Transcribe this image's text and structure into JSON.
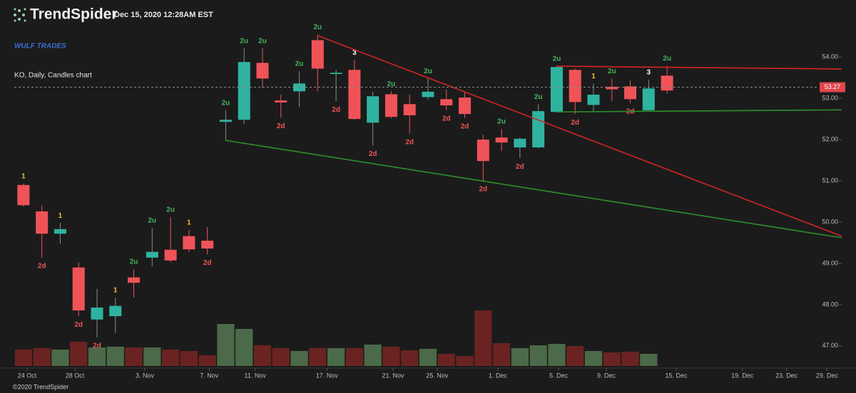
{
  "brand": "TrendSpider",
  "timestamp": "Dec 15, 2020 12:28AM EST",
  "watermark": "WULF TRADES",
  "chart_info": "KO, Daily, Candles chart",
  "footer": "©2020 TrendSpider",
  "chart_data": {
    "type": "candlestick",
    "open": [
      50.9,
      50.26,
      49.72,
      48.9,
      47.64,
      47.72,
      48.66,
      49.14,
      49.33,
      49.66,
      49.55,
      52.43,
      52.48,
      53.86,
      52.95,
      53.17,
      54.41,
      53.59,
      53.69,
      52.41,
      53.1,
      52.86,
      53.03,
      52.98,
      53.02,
      52.0,
      52.05,
      51.81,
      51.81,
      52.67,
      53.69,
      52.84,
      53.28,
      53.29,
      52.71,
      53.55
    ],
    "high": [
      50.93,
      50.41,
      49.98,
      49.03,
      48.38,
      48.17,
      48.86,
      49.86,
      50.12,
      49.81,
      49.88,
      52.71,
      54.21,
      54.21,
      53.09,
      53.66,
      54.55,
      53.69,
      53.93,
      53.16,
      53.17,
      53.09,
      53.48,
      53.21,
      53.16,
      52.12,
      52.26,
      52.05,
      52.86,
      53.78,
      53.72,
      53.36,
      53.48,
      53.43,
      53.45,
      53.79
    ],
    "low": [
      50.38,
      49.14,
      49.48,
      47.72,
      47.21,
      47.31,
      48.17,
      48.93,
      49.03,
      49.28,
      49.22,
      51.97,
      52.38,
      53.24,
      52.53,
      52.79,
      53.17,
      52.93,
      52.48,
      51.86,
      52.52,
      52.14,
      52.97,
      52.71,
      52.52,
      51.0,
      51.72,
      51.55,
      51.79,
      52.66,
      52.62,
      52.69,
      52.93,
      52.88,
      52.71,
      53.12
    ],
    "close": [
      50.41,
      49.72,
      49.83,
      47.86,
      47.93,
      47.97,
      48.53,
      49.28,
      49.07,
      49.34,
      49.36,
      52.48,
      53.88,
      53.48,
      52.9,
      53.36,
      53.72,
      53.62,
      52.5,
      53.05,
      52.55,
      52.59,
      53.16,
      52.83,
      52.62,
      51.48,
      51.93,
      52.02,
      52.69,
      53.76,
      52.91,
      53.09,
      53.22,
      52.98,
      53.24,
      53.19
    ],
    "labels": [
      "1",
      "2d",
      "1",
      "2d",
      "2d",
      "1",
      "2u",
      "2u",
      "2u",
      "1",
      "2d",
      "2u",
      "2u",
      "2u",
      "2d",
      "2u",
      "2u",
      "2d",
      "3",
      "2d",
      "2u",
      "2d",
      "2u",
      "2d",
      "2d",
      "2d",
      "2u",
      "2d",
      "2u",
      "2u",
      "2d",
      "1",
      "2u",
      "2d",
      "3",
      "2u"
    ],
    "volume": [
      23,
      25,
      23,
      34,
      26,
      27,
      26,
      26,
      23,
      21,
      15,
      59,
      52,
      29,
      25,
      21,
      25,
      25,
      25,
      30,
      27,
      22,
      24,
      17,
      14,
      78,
      32,
      25,
      29,
      31,
      28,
      21,
      19,
      20,
      17,
      null
    ],
    "volume_lim": [
      0,
      100
    ],
    "up_color": "#2fb3a0",
    "down_color": "#ef5358",
    "volume_up_color": "#4b6a49",
    "volume_down_color": "#6a2321",
    "label_colors": {
      "2u": "#45b45e",
      "2d": "#ef5358",
      "1": "#f2c230",
      "3": "#ffffff"
    },
    "trendlines": [
      {
        "color": "#d42424",
        "x": [
          16,
          44.5
        ],
        "y": [
          54.52,
          49.66
        ]
      },
      {
        "color": "#2f8f2a",
        "x": [
          11,
          44.5
        ],
        "y": [
          51.98,
          49.62
        ]
      },
      {
        "color": "#d42424",
        "x": [
          29,
          44.5
        ],
        "y": [
          53.78,
          53.71
        ]
      },
      {
        "color": "#2f8f2a",
        "x": [
          29,
          44.5
        ],
        "y": [
          52.67,
          52.72
        ]
      }
    ],
    "last_price": 53.27,
    "last_price_color": "#e0474c",
    "xlim": [
      -0.5,
      44.5
    ],
    "xticks": [
      {
        "value": 0.2,
        "label": "24 Oct"
      },
      {
        "value": 2.8,
        "label": "28 Oct"
      },
      {
        "value": 6.6,
        "label": "3. Nov"
      },
      {
        "value": 10.1,
        "label": "7. Nov"
      },
      {
        "value": 12.6,
        "label": "11. Nov"
      },
      {
        "value": 16.5,
        "label": "17. Nov"
      },
      {
        "value": 20.1,
        "label": "21. Nov"
      },
      {
        "value": 22.5,
        "label": "25. Nov"
      },
      {
        "value": 25.8,
        "label": "1. Dec"
      },
      {
        "value": 29.1,
        "label": "5. Dec"
      },
      {
        "value": 31.7,
        "label": "9. Dec"
      },
      {
        "value": 35.5,
        "label": "15. Dec"
      },
      {
        "value": 39.1,
        "label": "19. Dec"
      },
      {
        "value": 41.5,
        "label": "23. Dec"
      },
      {
        "value": 43.7,
        "label": "29. Dec"
      }
    ],
    "ylim": [
      46.48,
      54.9
    ],
    "yticks": [
      {
        "value": 47,
        "label": "47.00"
      },
      {
        "value": 48,
        "label": "48.00"
      },
      {
        "value": 49,
        "label": "49.00"
      },
      {
        "value": 50,
        "label": "50.00"
      },
      {
        "value": 51,
        "label": "51.00"
      },
      {
        "value": 52,
        "label": "52.00"
      },
      {
        "value": 53,
        "label": "53.00"
      },
      {
        "value": 54,
        "label": "54.00"
      }
    ]
  }
}
